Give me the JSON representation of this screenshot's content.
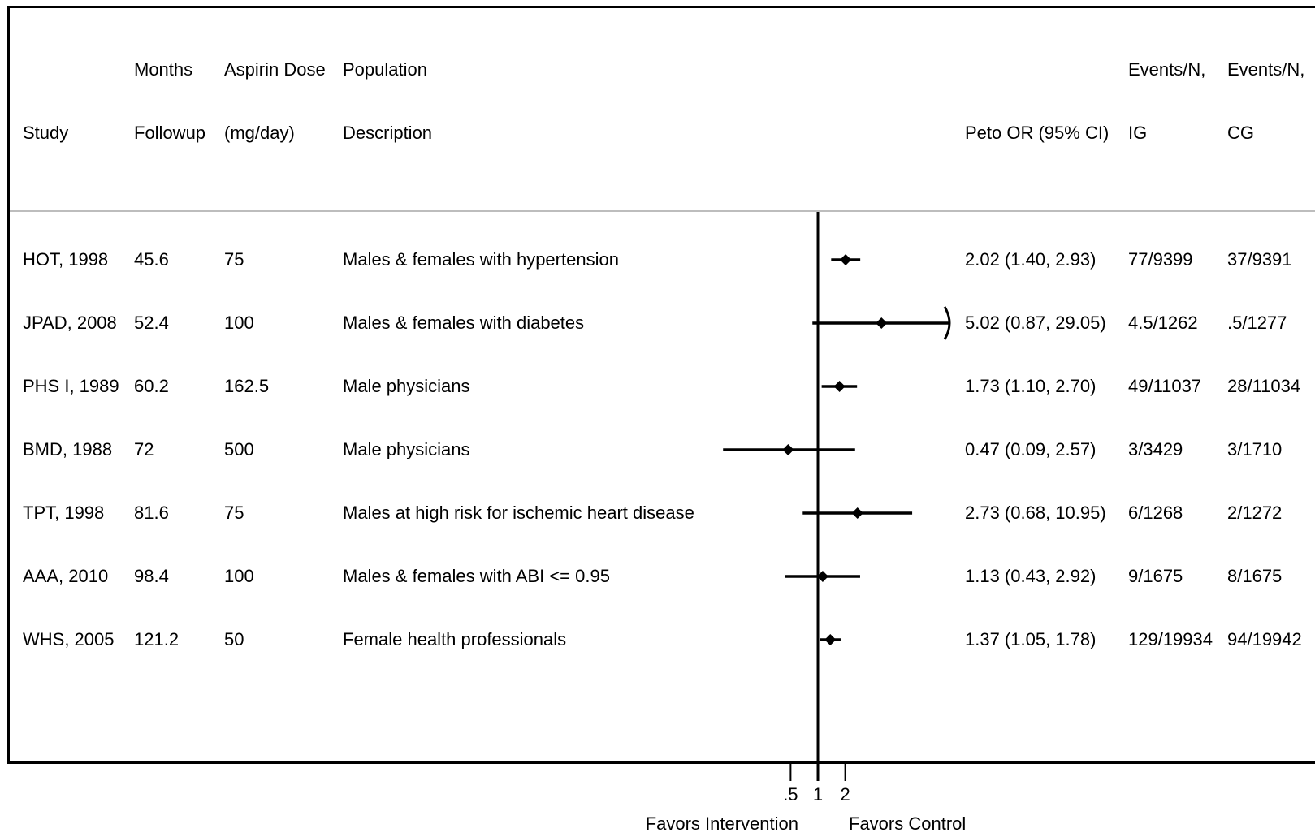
{
  "header": {
    "row1": {
      "months": "Months",
      "dose": "Aspirin Dose",
      "population": "Population",
      "events_ig": "Events/N,",
      "events_cg": "Events/N,"
    },
    "row2": {
      "study": "Study",
      "months": "Followup",
      "dose": "(mg/day)",
      "population": "Description",
      "or": "Peto OR (95% CI)",
      "events_ig": "IG",
      "events_cg": "CG"
    }
  },
  "rows": [
    {
      "study": "HOT, 1998",
      "months": "45.6",
      "dose": "75",
      "population": "Males & females with hypertension",
      "or_text": "2.02 (1.40, 2.93)",
      "ig": "77/9399",
      "cg": "37/9391"
    },
    {
      "study": "JPAD, 2008",
      "months": "52.4",
      "dose": "100",
      "population": "Males & females with diabetes",
      "or_text": "5.02 (0.87, 29.05)",
      "ig": "4.5/1262",
      "cg": ".5/1277"
    },
    {
      "study": "PHS I, 1989",
      "months": "60.2",
      "dose": "162.5",
      "population": "Male physicians",
      "or_text": "1.73 (1.10, 2.70)",
      "ig": "49/11037",
      "cg": "28/11034"
    },
    {
      "study": "BMD, 1988",
      "months": "72",
      "dose": "500",
      "population": "Male physicians",
      "or_text": "0.47 (0.09, 2.57)",
      "ig": "3/3429",
      "cg": "3/1710"
    },
    {
      "study": "TPT, 1998",
      "months": "81.6",
      "dose": "75",
      "population": "Males at high risk for ischemic heart disease",
      "or_text": "2.73 (0.68, 10.95)",
      "ig": "6/1268",
      "cg": "2/1272"
    },
    {
      "study": "AAA, 2010",
      "months": "98.4",
      "dose": "100",
      "population": "Males & females with ABI <= 0.95",
      "or_text": "1.13 (0.43, 2.92)",
      "ig": "9/1675",
      "cg": "8/1675"
    },
    {
      "study": "WHS, 2005",
      "months": "121.2",
      "dose": "50",
      "population": "Female health professionals",
      "or_text": "1.37 (1.05, 1.78)",
      "ig": "129/19934",
      "cg": "94/19942"
    }
  ],
  "chart_data": {
    "type": "forest",
    "scale": "log",
    "null_value": 1,
    "ticks": [
      {
        "value": 0.5,
        "label": ".5"
      },
      {
        "value": 1,
        "label": "1"
      },
      {
        "value": 2,
        "label": "2"
      }
    ],
    "x_axis_left_label": "Favors Intervention",
    "x_axis_right_label": "Favors Control",
    "series": [
      {
        "study": "HOT, 1998",
        "or": 2.02,
        "lower": 1.4,
        "upper": 2.93
      },
      {
        "study": "JPAD, 2008",
        "or": 5.02,
        "lower": 0.87,
        "upper": 29.05
      },
      {
        "study": "PHS I, 1989",
        "or": 1.73,
        "lower": 1.1,
        "upper": 2.7
      },
      {
        "study": "BMD, 1988",
        "or": 0.47,
        "lower": 0.09,
        "upper": 2.57
      },
      {
        "study": "TPT, 1998",
        "or": 2.73,
        "lower": 0.68,
        "upper": 10.95
      },
      {
        "study": "AAA, 2010",
        "or": 1.13,
        "lower": 0.43,
        "upper": 2.92
      },
      {
        "study": "WHS, 2005",
        "or": 1.37,
        "lower": 1.05,
        "upper": 1.78
      }
    ],
    "colors": {
      "marks": "#000000",
      "divider": "#bdbdbd"
    }
  }
}
